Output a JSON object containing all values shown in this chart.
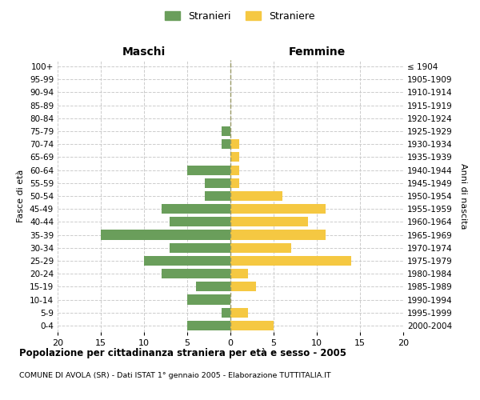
{
  "age_groups": [
    "0-4",
    "5-9",
    "10-14",
    "15-19",
    "20-24",
    "25-29",
    "30-34",
    "35-39",
    "40-44",
    "45-49",
    "50-54",
    "55-59",
    "60-64",
    "65-69",
    "70-74",
    "75-79",
    "80-84",
    "85-89",
    "90-94",
    "95-99",
    "100+"
  ],
  "birth_years": [
    "2000-2004",
    "1995-1999",
    "1990-1994",
    "1985-1989",
    "1980-1984",
    "1975-1979",
    "1970-1974",
    "1965-1969",
    "1960-1964",
    "1955-1959",
    "1950-1954",
    "1945-1949",
    "1940-1944",
    "1935-1939",
    "1930-1934",
    "1925-1929",
    "1920-1924",
    "1915-1919",
    "1910-1914",
    "1905-1909",
    "≤ 1904"
  ],
  "maschi": [
    5,
    1,
    5,
    4,
    8,
    10,
    7,
    15,
    7,
    8,
    3,
    3,
    5,
    0,
    1,
    1,
    0,
    0,
    0,
    0,
    0
  ],
  "femmine": [
    5,
    2,
    0,
    3,
    2,
    14,
    7,
    11,
    9,
    11,
    6,
    1,
    1,
    1,
    1,
    0,
    0,
    0,
    0,
    0,
    0
  ],
  "color_maschi": "#6a9e5b",
  "color_femmine": "#f5c842",
  "title": "Popolazione per cittadinanza straniera per età e sesso - 2005",
  "subtitle": "COMUNE DI AVOLA (SR) - Dati ISTAT 1° gennaio 2005 - Elaborazione TUTTITALIA.IT",
  "xlabel_left": "Maschi",
  "xlabel_right": "Femmine",
  "ylabel_left": "Fasce di età",
  "ylabel_right": "Anni di nascita",
  "legend_maschi": "Stranieri",
  "legend_femmine": "Straniere",
  "xlim": 20,
  "background_color": "#ffffff",
  "grid_color": "#cccccc"
}
